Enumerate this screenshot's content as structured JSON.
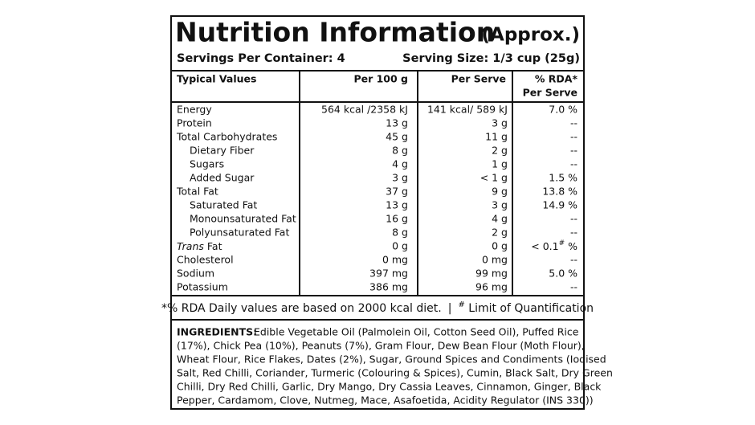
{
  "header": {
    "title": "Nutrition Information",
    "subtitle": "(Approx.)",
    "servings": "Servings Per Container: 4",
    "serving_size": "Serving Size: 1/3 cup (25g)"
  },
  "table": {
    "columns": [
      "Typical Values",
      "Per 100 g",
      "Per Serve",
      "% RDA*"
    ],
    "rda_subheader": "Per Serve",
    "rows": [
      {
        "name": "Energy",
        "per_100g": "564 kcal /2358 kJ",
        "per_serve": "141 kcal/ 589 kJ",
        "rda": "7.0 %"
      },
      {
        "name": "Protein",
        "per_100g": "13 g",
        "per_serve": "3 g",
        "rda": "--"
      },
      {
        "name": "Total Carbohydrates",
        "per_100g": "45 g",
        "per_serve": "11 g",
        "rda": "--"
      },
      {
        "name": "Dietary Fiber",
        "indent": true,
        "per_100g": "8 g",
        "per_serve": "2 g",
        "rda": "--"
      },
      {
        "name": "Sugars",
        "indent": true,
        "per_100g": "4 g",
        "per_serve": "1 g",
        "rda": "--"
      },
      {
        "name": "Added Sugar",
        "indent": true,
        "per_100g": "3 g",
        "per_serve": "< 1 g",
        "rda": "1.5 %"
      },
      {
        "name": "Total Fat",
        "per_100g": "37 g",
        "per_serve": "9 g",
        "rda": "13.8 %"
      },
      {
        "name": "Saturated Fat",
        "indent": true,
        "per_100g": "13 g",
        "per_serve": "3 g",
        "rda": "14.9 %"
      },
      {
        "name": "Monounsaturated Fat",
        "indent": true,
        "per_100g": "16 g",
        "per_serve": "4 g",
        "rda": "--"
      },
      {
        "name": "Polyunsaturated Fat",
        "indent": true,
        "per_100g": "8 g",
        "per_serve": "2 g",
        "rda": "--"
      },
      {
        "name": {
          "italic": "Trans",
          "text": " Fat"
        },
        "per_100g": "0 g",
        "per_serve": "0 g",
        "rda": {
          "text": "< 0.1",
          "sup": "#",
          "unit": " %"
        }
      },
      {
        "name": "Cholesterol",
        "per_100g": "0 mg",
        "per_serve": "0 mg",
        "rda": "--"
      },
      {
        "name": "Sodium",
        "per_100g": "397 mg",
        "per_serve": "99 mg",
        "rda": "5.0 %"
      },
      {
        "name": "Potassium",
        "per_100g": "386 mg",
        "per_serve": "96 mg",
        "rda": "--"
      }
    ]
  },
  "footnote": {
    "text": "*% RDA Daily values are based on 2000 kcal diet.",
    "separator": "|",
    "sup": "#",
    "note": " Limit of Quantification"
  },
  "ingredients": {
    "label": "INGREDIENTS:",
    "lines": [
      "Edible Vegetable Oil (Palmolein Oil, Cotton Seed Oil), Puffed Rice",
      "(17%), Chick Pea (10%), Peanuts (7%), Gram Flour, Dew Bean Flour (Moth Flour),",
      "Wheat Flour, Rice Flakes, Dates (2%), Sugar, Ground Spices and Condiments (Iodised",
      "Salt, Red Chilli, Coriander, Turmeric (Colouring & Spices), Cumin, Black Salt, Dry Green",
      "Chilli, Dry Red Chilli, Garlic, Dry Mango, Dry Cassia Leaves, Cinnamon, Ginger, Black",
      "Pepper, Cardamom, Clove, Nutmeg, Mace, Asafoetida, Acidity Regulator (INS 330))"
    ]
  }
}
